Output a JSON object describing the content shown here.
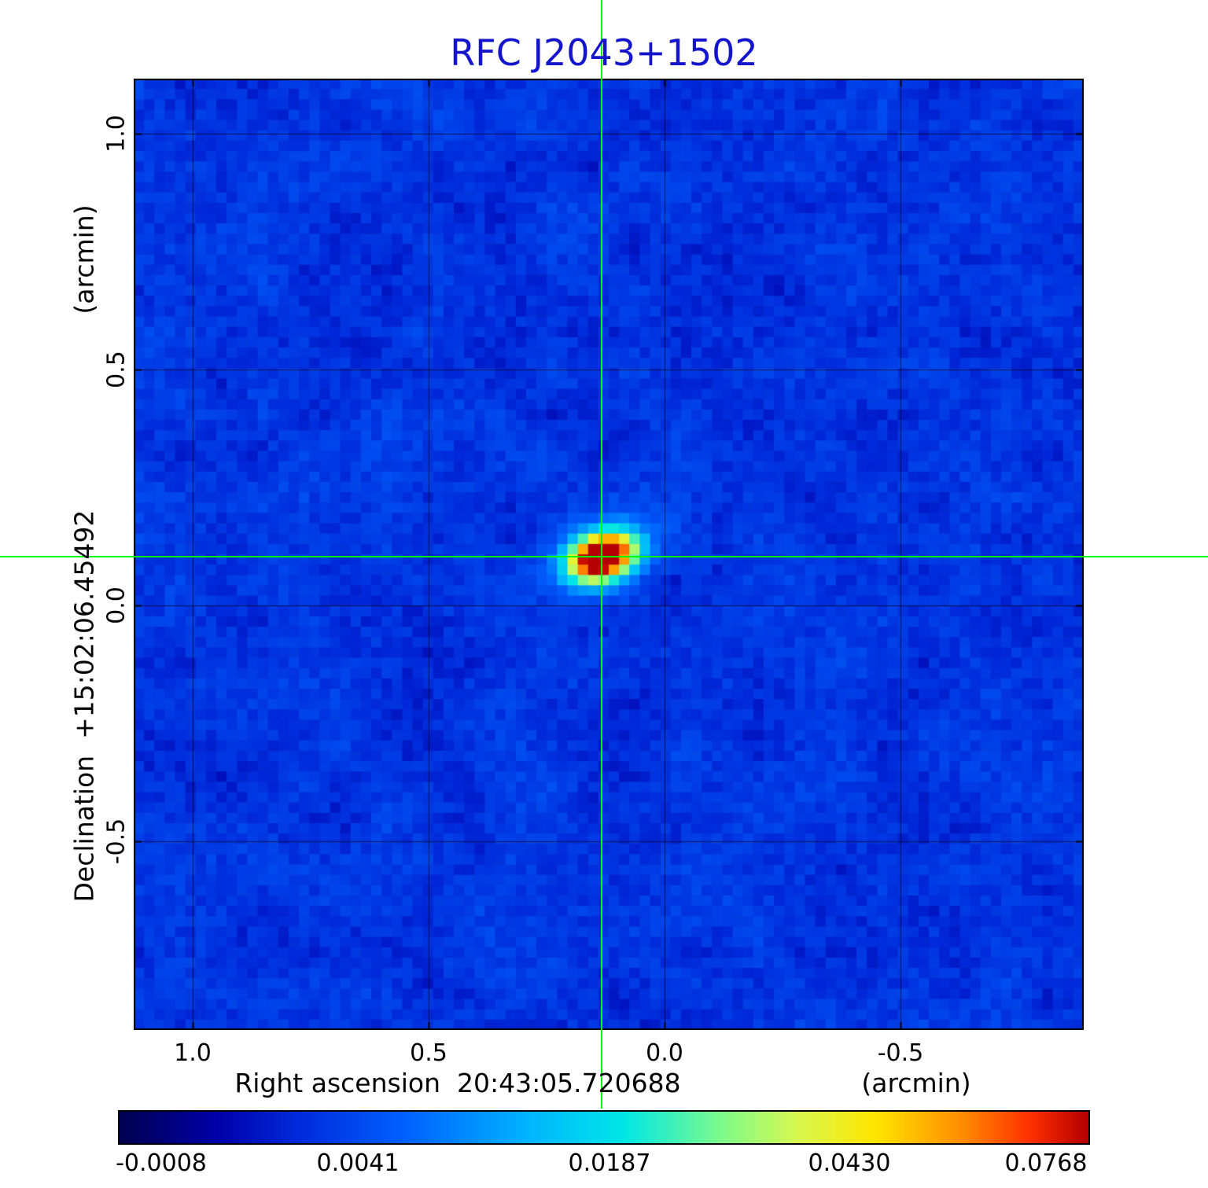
{
  "title": "RFC J2043+1502",
  "axes": {
    "x": {
      "label": "Right ascension  20:43:05.720688",
      "unit": "(arcmin)",
      "ticks": [
        "1.0",
        "0.5",
        "0.0",
        "-0.5"
      ]
    },
    "y": {
      "label": "Declination  +15:02:06.45492",
      "unit": "(arcmin)",
      "ticks": [
        "1.0",
        "0.5",
        "0.0",
        "-0.5"
      ]
    }
  },
  "colorbar": {
    "ticks": [
      "-0.0008",
      "0.0041",
      "0.0187",
      "0.0430",
      "0.0768"
    ]
  },
  "chart_data": {
    "type": "heatmap",
    "title": "RFC J2043+1502",
    "xlabel": "Right ascension 20:43:05.720688 (arcmin)",
    "ylabel": "Declination +15:02:06.45492 (arcmin)",
    "x_range_arcmin": [
      1.125,
      -0.888
    ],
    "y_range_arcmin": [
      1.117,
      -0.9
    ],
    "x_ticks_arcmin": [
      1.0,
      0.5,
      0.0,
      -0.5
    ],
    "y_ticks_arcmin": [
      1.0,
      0.5,
      0.0,
      -0.5
    ],
    "grid_on": true,
    "grid_n": 92,
    "background_mean": 0.0025,
    "background_rms": 0.0012,
    "source": {
      "name": "RFC J2043+1502",
      "ra_j2000": "20:43:05.720688",
      "dec_j2000": "+15:02:06.45492",
      "offset_arcmin": {
        "x": 0.133,
        "y": 0.103
      },
      "peak_intensity": 0.0768,
      "render_amplitude": 0.105,
      "halo_amplitude": 0.01,
      "beam_sigma_cells": {
        "major": 1.9,
        "minor": 1.25
      },
      "halo_sigma_cells": {
        "major": 3.2,
        "minor": 2.2
      },
      "beam_angle_rad": -0.35
    },
    "intensity_scale": {
      "min": -0.0008,
      "max": 0.0768,
      "scale": "sqrt",
      "tick_values": [
        -0.0008,
        0.0041,
        0.0187,
        0.043,
        0.0768
      ]
    },
    "crosshair_color": "#00ff00",
    "title_color": "#1414cc",
    "colormap_stops": [
      {
        "t": 0.0,
        "color": "#000050"
      },
      {
        "t": 0.1,
        "color": "#0000a8"
      },
      {
        "t": 0.18,
        "color": "#0028d8"
      },
      {
        "t": 0.3,
        "color": "#0064ff"
      },
      {
        "t": 0.42,
        "color": "#00b4ff"
      },
      {
        "t": 0.52,
        "color": "#00e6e6"
      },
      {
        "t": 0.62,
        "color": "#7cfa8c"
      },
      {
        "t": 0.7,
        "color": "#d8f850"
      },
      {
        "t": 0.78,
        "color": "#ffe600"
      },
      {
        "t": 0.87,
        "color": "#ff8c00"
      },
      {
        "t": 0.94,
        "color": "#ff3000"
      },
      {
        "t": 1.0,
        "color": "#b40000"
      }
    ]
  }
}
